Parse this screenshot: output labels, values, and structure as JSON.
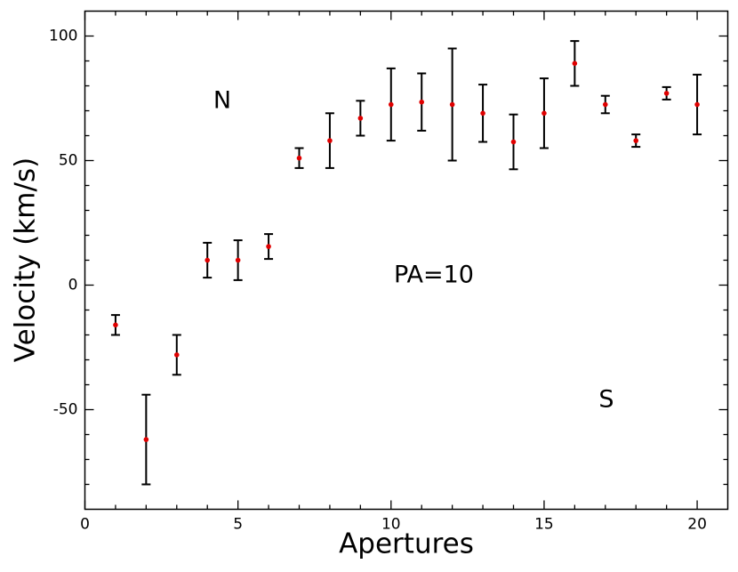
{
  "chart_data": {
    "type": "errorbar",
    "xlabel": "Apertures",
    "ylabel": "Velocity (km/s)",
    "x": [
      1,
      2,
      3,
      4,
      5,
      6,
      7,
      8,
      9,
      10,
      11,
      12,
      13,
      14,
      15,
      16,
      17,
      18,
      19,
      20
    ],
    "values": [
      -16,
      -62,
      -28,
      10,
      10,
      15.5,
      51,
      58,
      67,
      72.5,
      73.5,
      72.5,
      69,
      57.5,
      69,
      89,
      72.5,
      58,
      77,
      72.5
    ],
    "errors": [
      4,
      18,
      8,
      7,
      8,
      5,
      4,
      11,
      7,
      14.5,
      11.5,
      22.5,
      11.5,
      11,
      14,
      9,
      3.5,
      2.5,
      2.5,
      12
    ],
    "color": "#e00000",
    "error_color": "#000000",
    "xlim": [
      0,
      21
    ],
    "ylim": [
      -90,
      110
    ],
    "xticks": [
      0,
      5,
      10,
      15,
      20
    ],
    "yticks": [
      -50,
      0,
      50,
      100
    ],
    "xminorticks": [
      1,
      2,
      3,
      4,
      6,
      7,
      8,
      9,
      11,
      12,
      13,
      14,
      16,
      17,
      18,
      19
    ],
    "yminorticks": [
      -80,
      -70,
      -60,
      -40,
      -30,
      -20,
      -10,
      10,
      20,
      30,
      40,
      60,
      70,
      80,
      90
    ],
    "annotations": [
      "N",
      "PA=10",
      "S"
    ]
  }
}
